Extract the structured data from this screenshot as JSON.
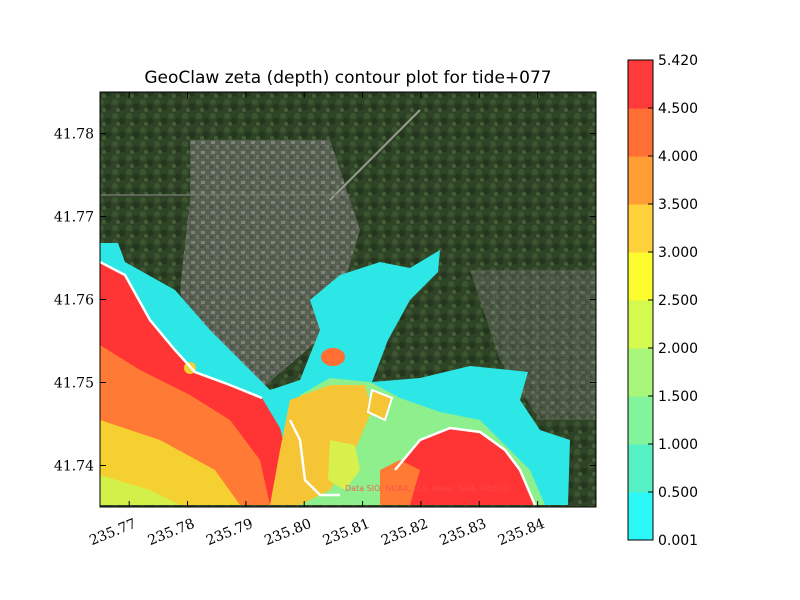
{
  "chart_data": {
    "type": "heatmap",
    "title": "GeoClaw zeta (depth) contour plot for tide+077",
    "xlabel": "",
    "ylabel": "",
    "xlim": [
      235.765,
      235.85
    ],
    "ylim": [
      41.735,
      41.785
    ],
    "x_ticks": [
      "235.77",
      "235.78",
      "235.79",
      "235.80",
      "235.81",
      "235.82",
      "235.83",
      "235.84"
    ],
    "x_tick_values": [
      235.77,
      235.78,
      235.79,
      235.8,
      235.81,
      235.82,
      235.83,
      235.84
    ],
    "y_ticks": [
      "41.74",
      "41.75",
      "41.76",
      "41.77",
      "41.78"
    ],
    "y_tick_values": [
      41.74,
      41.75,
      41.76,
      41.77,
      41.78
    ],
    "background": "satellite imagery",
    "watermark": "Data SIO, NOAA, U.S. Navy, NGA, GEBCO",
    "colorbar": {
      "levels": [
        "0.001",
        "0.500",
        "1.000",
        "1.500",
        "2.000",
        "2.500",
        "3.000",
        "3.500",
        "4.000",
        "4.500",
        "5.420"
      ],
      "colors": [
        "#2bf7f7",
        "#55f0c4",
        "#82f49b",
        "#a8f77a",
        "#d4f94f",
        "#fbfb2e",
        "#ffd13a",
        "#ff9d35",
        "#ff6f33",
        "#ff3a3a"
      ]
    }
  }
}
